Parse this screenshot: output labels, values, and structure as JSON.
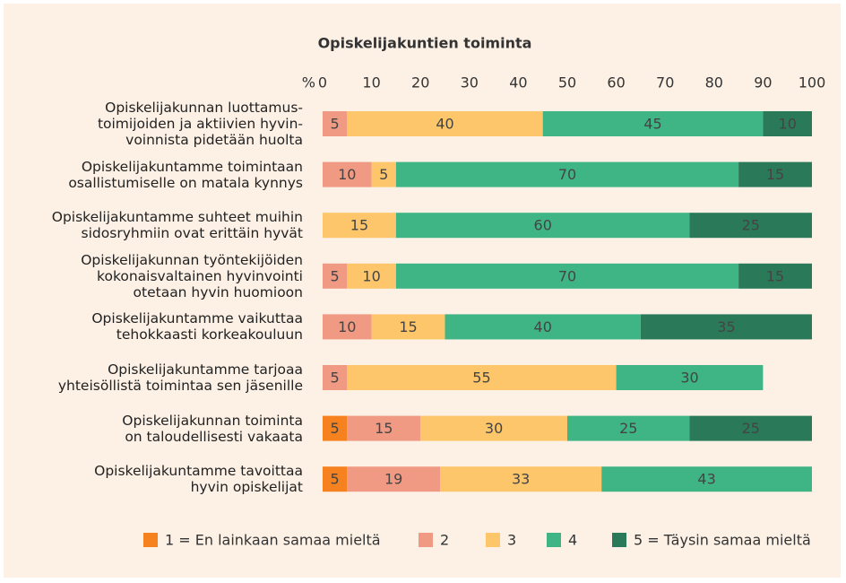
{
  "chart_data": {
    "type": "stacked_barh",
    "title": "Opiskelijakuntien toiminta",
    "x_unit": "%",
    "categories": [
      "Opiskelijakunnan luottamus-\ntoimijoiden ja aktiivien hyvin-\nvoinnista pidetään huolta",
      "Opiskelijakuntamme toimintaan\nosallistumiselle on matala kynnys",
      "Opiskelijakuntamme suhteet muihin\nsidosryhmiin ovat erittäin hyvät",
      "Opiskelijakunnan työntekijöiden\nkokonaisvaltainen hyvinvointi\notetaan hyvin huomioon",
      "Opiskelijakuntamme vaikuttaa\ntehokkaasti korkeakouluun",
      "Opiskelijakuntamme tarjoaa\nyhteisöllistä toimintaa sen jäsenille",
      "Opiskelijakunnan toiminta\non taloudellisesti vakaata",
      "Opiskelijakuntamme tavoittaa\nhyvin opiskelijat"
    ],
    "series": [
      {
        "name": "1 = En lainkaan samaa mieltä",
        "color": "#f5821f",
        "values": [
          null,
          null,
          null,
          null,
          null,
          null,
          5,
          5
        ]
      },
      {
        "name": "2",
        "color": "#f09a84",
        "values": [
          5,
          10,
          null,
          5,
          10,
          5,
          15,
          19
        ]
      },
      {
        "name": "3",
        "color": "#fdc66a",
        "values": [
          40,
          5,
          15,
          10,
          15,
          55,
          30,
          33
        ]
      },
      {
        "name": "4",
        "color": "#3fb585",
        "values": [
          45,
          70,
          60,
          70,
          40,
          30,
          25,
          43
        ]
      },
      {
        "name": "5 = Täysin samaa mieltä",
        "color": "#2a7a5a",
        "values": [
          10,
          15,
          25,
          15,
          35,
          null,
          25,
          null
        ]
      }
    ],
    "xlim": [
      0,
      100
    ],
    "xticks": [
      0,
      10,
      20,
      30,
      40,
      50,
      60,
      70,
      80,
      90,
      100
    ],
    "legend": "bottom"
  }
}
